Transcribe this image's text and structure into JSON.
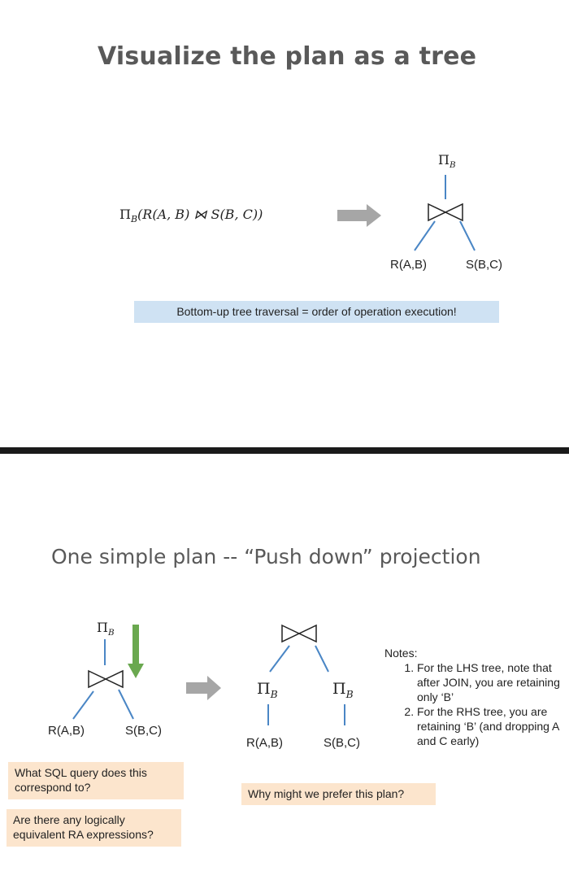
{
  "slide1": {
    "title": "Visualize the plan as a tree",
    "expression": {
      "pi": "Π",
      "sub": "B",
      "body": "(R(A, B) ⋈ S(B, C))"
    },
    "tree": {
      "root_pi": "Π",
      "root_sub": "B",
      "left_leaf": "R(A,B)",
      "right_leaf": "S(B,C)"
    },
    "callout": "Bottom-up tree traversal = order of operation execution!"
  },
  "slide2": {
    "title": "One simple plan -- “Push down” projection",
    "lhs_tree": {
      "root_pi": "Π",
      "root_sub": "B",
      "left_leaf": "R(A,B)",
      "right_leaf": "S(B,C)"
    },
    "rhs_tree": {
      "left_pi": "Π",
      "left_sub": "B",
      "right_pi": "Π",
      "right_sub": "B",
      "left_leaf": "R(A,B)",
      "right_leaf": "S(B,C)"
    },
    "notes": {
      "heading": "Notes:",
      "items": [
        "For the LHS tree, note that after JOIN, you are retaining only ‘B’",
        "For the RHS tree, you are retaining ‘B’ (and dropping A and C early)"
      ]
    },
    "question_sql": "What SQL query does this correspond to?",
    "question_equiv": "Are there any logically equivalent RA expressions?",
    "question_prefer": "Why might we prefer this plan?"
  },
  "colors": {
    "title_gray": "#595959",
    "tree_edge_blue": "#4a86c5",
    "arrow_gray": "#a6a6a6",
    "arrow_green": "#6aa84f",
    "callout_blue": "#cfe2f3",
    "callout_peach": "#fce5cd",
    "divider": "#1a1a1a"
  },
  "icons": [
    "join-bowtie-icon",
    "right-arrow-icon",
    "down-arrow-icon"
  ]
}
